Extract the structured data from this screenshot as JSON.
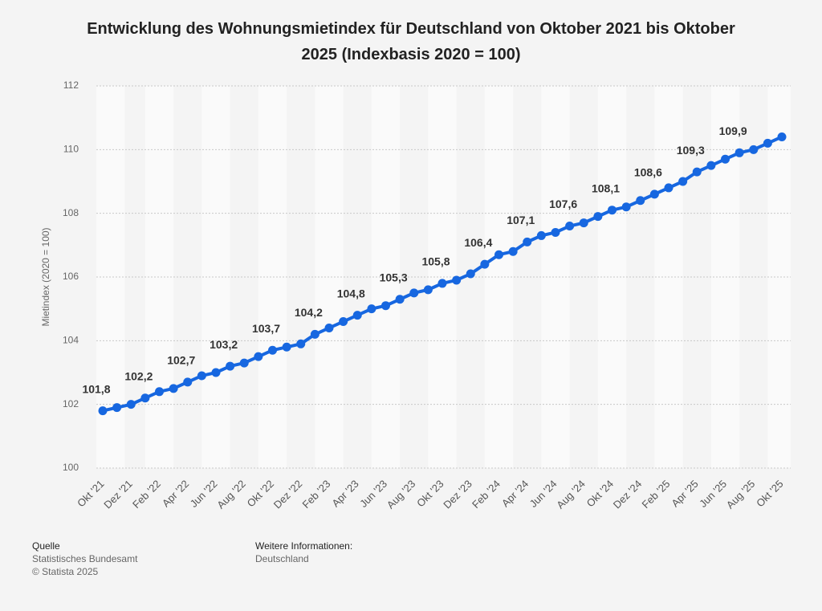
{
  "chart_data": {
    "type": "line",
    "title": "Entwicklung des Wohnungsmietindex für Deutschland von Oktober 2021 bis Oktober 2025 (Indexbasis 2020 = 100)",
    "y_label": "Mietindex (2020 = 100)",
    "categories": [
      "Okt '21",
      null,
      "Dez '21",
      null,
      "Feb '22",
      null,
      "Apr '22",
      null,
      "Jun '22",
      null,
      "Aug '22",
      null,
      "Okt '22",
      null,
      "Dez '22",
      null,
      "Feb '23",
      null,
      "Apr '23",
      null,
      "Jun '23",
      null,
      "Aug '23",
      null,
      "Okt '23",
      null,
      "Dez '23",
      null,
      "Feb '24",
      null,
      "Apr '24",
      null,
      "Jun '24",
      null,
      "Aug '24",
      null,
      "Okt '24",
      null,
      "Dez '24",
      null,
      "Feb '25",
      null,
      "Apr '25",
      null,
      "Jun '25",
      null,
      "Aug '25",
      null,
      "Okt '25"
    ],
    "series": [
      {
        "name": "Mietindex",
        "color": "#1767e0",
        "values": [
          101.8,
          101.9,
          102.0,
          102.2,
          102.4,
          102.5,
          102.7,
          102.9,
          103.0,
          103.2,
          103.3,
          103.5,
          103.7,
          103.8,
          103.9,
          104.2,
          104.4,
          104.6,
          104.8,
          105.0,
          105.1,
          105.3,
          105.5,
          105.6,
          105.8,
          105.9,
          106.1,
          106.4,
          106.7,
          106.8,
          107.1,
          107.3,
          107.4,
          107.6,
          107.7,
          107.9,
          108.1,
          108.2,
          108.4,
          108.6,
          108.8,
          109.0,
          109.3,
          109.5,
          109.7,
          109.9,
          110.0,
          110.2,
          110.4
        ],
        "value_labels": [
          "101,8",
          null,
          null,
          "102,2",
          null,
          null,
          "102,7",
          null,
          null,
          "103,2",
          null,
          null,
          "103,7",
          null,
          null,
          "104,2",
          null,
          null,
          "104,8",
          null,
          null,
          "105,3",
          null,
          null,
          "105,8",
          null,
          null,
          "106,4",
          null,
          null,
          "107,1",
          null,
          null,
          "107,6",
          null,
          null,
          "108,1",
          null,
          null,
          "108,6",
          null,
          null,
          "109,3",
          null,
          null,
          "109,9",
          null,
          null,
          null
        ]
      }
    ],
    "ylim": [
      100,
      112
    ],
    "yticks": [
      100,
      102,
      104,
      106,
      108,
      110,
      112
    ],
    "grid": true
  },
  "footer": {
    "source_heading": "Quelle",
    "source": "Statistisches Bundesamt",
    "copyright": "© Statista 2025",
    "info_heading": "Weitere Informationen:",
    "info": "Deutschland"
  }
}
